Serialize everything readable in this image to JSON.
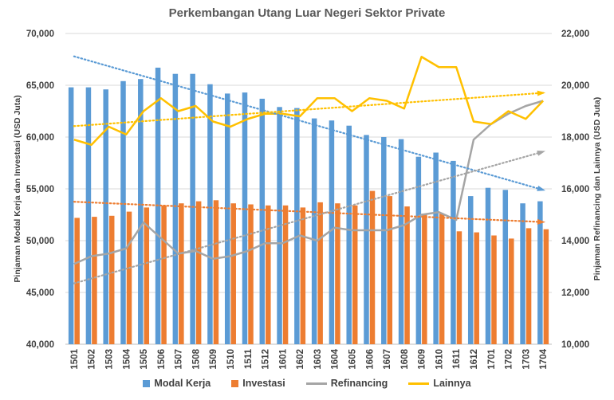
{
  "chart_data": {
    "type": "bar+line",
    "title": "Perkembangan Utang Luar Negeri Sektor Private",
    "ylabel_left": "Pinjaman Modal Kerja dan Investasi (USD Juta)",
    "ylabel_right": "Pinjaman Refinancing dan Lainnya (USD Juta)",
    "ylim_left": [
      40000,
      70000
    ],
    "ylim_right": [
      10000,
      22000
    ],
    "yticks_left": [
      "40,000",
      "45,000",
      "50,000",
      "55,000",
      "60,000",
      "65,000",
      "70,000"
    ],
    "yticks_right": [
      "10,000",
      "12,000",
      "14,000",
      "16,000",
      "18,000",
      "20,000",
      "22,000"
    ],
    "grid": true,
    "legend": "bottom",
    "trendlines": "linear, dotted, per series",
    "categories": [
      "1501",
      "1502",
      "1503",
      "1504",
      "1505",
      "1506",
      "1507",
      "1508",
      "1509",
      "1510",
      "1511",
      "1512",
      "1601",
      "1602",
      "1603",
      "1604",
      "1605",
      "1606",
      "1607",
      "1608",
      "1609",
      "1610",
      "1611",
      "1612",
      "1701",
      "1702",
      "1703",
      "1704"
    ],
    "series": [
      {
        "name": "Modal Kerja",
        "type": "bar",
        "axis": "left",
        "color": "#5b9bd5",
        "values": [
          64800,
          64800,
          64600,
          65400,
          65600,
          66700,
          66100,
          66100,
          65100,
          64200,
          64300,
          63700,
          62900,
          62800,
          61800,
          61600,
          61100,
          60200,
          60000,
          59800,
          58100,
          58500,
          57700,
          54300,
          55100,
          54900,
          53600,
          53800
        ]
      },
      {
        "name": "Investasi",
        "type": "bar",
        "axis": "left",
        "color": "#ed7d31",
        "values": [
          52200,
          52300,
          52400,
          52800,
          53200,
          53400,
          53600,
          53800,
          53900,
          53600,
          53500,
          53400,
          53400,
          53200,
          53700,
          53600,
          53400,
          54800,
          54300,
          53300,
          52600,
          52600,
          50900,
          50800,
          50500,
          50200,
          51200,
          51100
        ]
      },
      {
        "name": "Refinancing",
        "type": "line",
        "axis": "right",
        "color": "#a5a5a5",
        "values": [
          13100,
          13400,
          13500,
          13700,
          14700,
          14100,
          13500,
          13600,
          13300,
          13400,
          13600,
          13900,
          13900,
          14200,
          14000,
          14500,
          14400,
          14400,
          14400,
          14600,
          15000,
          15100,
          14800,
          17900,
          18500,
          18900,
          19200,
          19400
        ]
      },
      {
        "name": "Lainnya",
        "type": "line",
        "axis": "right",
        "color": "#ffc000",
        "values": [
          17900,
          17700,
          18400,
          18100,
          19000,
          19500,
          19000,
          19200,
          18600,
          18400,
          18700,
          18900,
          18900,
          18800,
          19500,
          19500,
          19000,
          19500,
          19400,
          19100,
          21100,
          20700,
          20700,
          18600,
          18500,
          19000,
          18700,
          19400
        ]
      }
    ]
  }
}
